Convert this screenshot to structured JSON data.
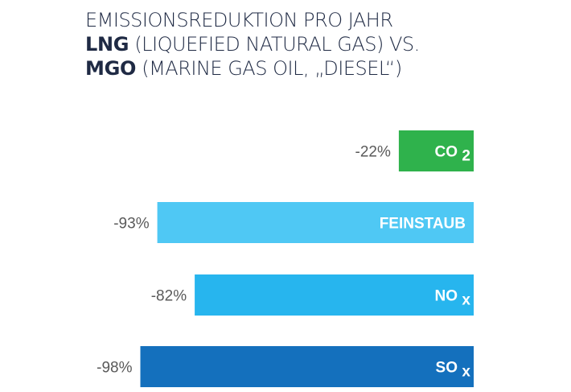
{
  "title": {
    "line1": "EMISSIONSREDUKTION PRO JAHR",
    "line2_bold": "LNG",
    "line2_rest": " (LIQUEFIED NATURAL GAS) VS.",
    "line3_bold": "MGO",
    "line3_rest": " (MARINE GAS OIL, „DIESEL“)"
  },
  "chart_data": {
    "type": "bar",
    "orientation": "horizontal",
    "direction": "right-to-left",
    "title": "EMISSIONSREDUKTION PRO JAHR LNG (LIQUEFIED NATURAL GAS) VS. MGO (MARINE GAS OIL, „DIESEL“)",
    "categories": [
      {
        "base": "CO",
        "sub": "2"
      },
      {
        "base": "FEINSTAUB",
        "sub": ""
      },
      {
        "base": "NO",
        "sub": "x"
      },
      {
        "base": "SO",
        "sub": "x"
      }
    ],
    "values": [
      -22,
      -93,
      -82,
      -98
    ],
    "value_labels": [
      "-22%",
      "-93%",
      "-82%",
      "-98%"
    ],
    "colors": [
      "#2fb24c",
      "#4fc8f4",
      "#27b5ee",
      "#1470bd"
    ],
    "xlim": [
      -100,
      0
    ],
    "grid": false,
    "legend": "none"
  }
}
